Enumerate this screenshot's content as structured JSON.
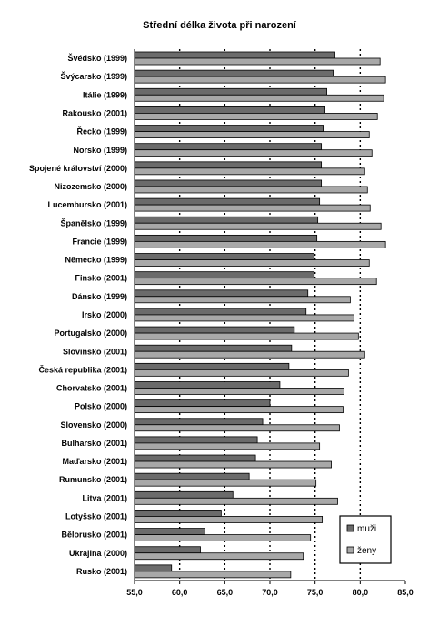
{
  "chart_data": {
    "type": "bar",
    "orientation": "horizontal",
    "title": "Střední délka života při narození",
    "categories": [
      "Švédsko (1999)",
      "Švýcarsko (1999)",
      "Itálie (1999)",
      "Rakousko (2001)",
      "Řecko (1999)",
      "Norsko (1999)",
      "Spojené království (2000)",
      "Nizozemsko (2000)",
      "Lucembursko (2001)",
      "Španělsko (1999)",
      "Francie (1999)",
      "Německo (1999)",
      "Finsko (2001)",
      "Dánsko (1999)",
      "Irsko (2000)",
      "Portugalsko (2000)",
      "Slovinsko (2001)",
      "Česká republika (2001)",
      "Chorvatsko (2001)",
      "Polsko (2000)",
      "Slovensko (2000)",
      "Bulharsko (2001)",
      "Maďarsko (2001)",
      "Rumunsko (2001)",
      "Litva (2001)",
      "Lotyšsko (2001)",
      "Bělorusko (2001)",
      "Ukrajina (2000)",
      "Rusko (2001)"
    ],
    "series": [
      {
        "name": "muži",
        "color": "#6b6b6b",
        "values": [
          77.2,
          77.0,
          76.3,
          76.1,
          75.9,
          75.7,
          75.7,
          75.7,
          75.5,
          75.3,
          75.2,
          74.9,
          74.9,
          74.2,
          74.0,
          72.7,
          72.4,
          72.1,
          71.1,
          70.0,
          69.2,
          68.6,
          68.4,
          67.7,
          65.9,
          64.6,
          62.8,
          62.3,
          59.1
        ]
      },
      {
        "name": "ženy",
        "color": "#a8a8a8",
        "values": [
          82.2,
          82.8,
          82.6,
          81.9,
          81.0,
          81.3,
          80.5,
          80.8,
          81.1,
          82.3,
          82.8,
          81.0,
          81.8,
          78.9,
          79.3,
          79.8,
          80.5,
          78.7,
          78.2,
          78.1,
          77.7,
          75.5,
          76.8,
          75.1,
          77.5,
          75.8,
          74.5,
          73.7,
          72.3
        ]
      }
    ],
    "xlim": [
      55.0,
      85.0
    ],
    "xticks": [
      "55,0",
      "60,0",
      "65,0",
      "70,0",
      "75,0",
      "80,0",
      "85,0"
    ],
    "gridlines": "dotted vertical at 60, 65, 70, 75, 80",
    "legend": {
      "position": "bottom-right",
      "entries": [
        "muži",
        "ženy"
      ]
    }
  }
}
